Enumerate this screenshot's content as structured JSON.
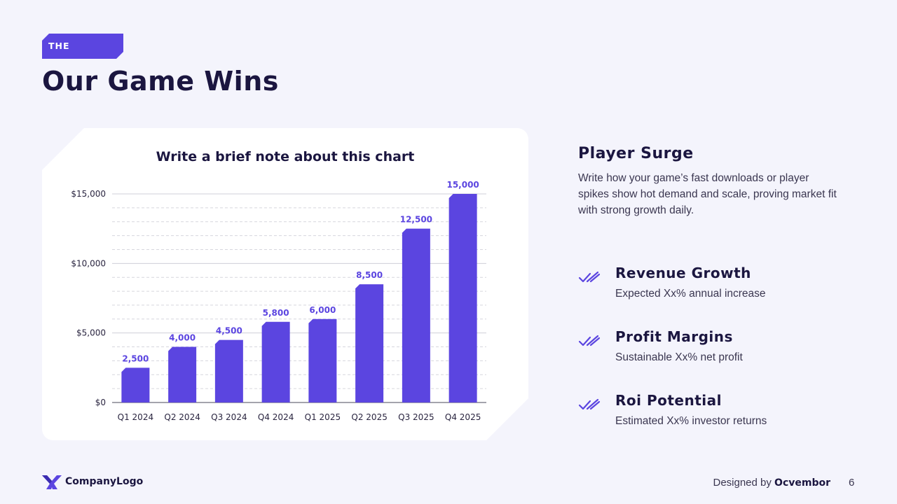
{
  "header": {
    "badge": "THE TRACTION",
    "title": "Our Game Wins"
  },
  "chart_data": {
    "type": "bar",
    "title": "Write a brief note about this chart",
    "categories": [
      "Q1 2024",
      "Q2 2024",
      "Q3 2024",
      "Q4 2024",
      "Q1 2025",
      "Q2 2025",
      "Q3 2025",
      "Q4 2025"
    ],
    "values": [
      2500,
      4000,
      4500,
      5800,
      6000,
      8500,
      12500,
      15000
    ],
    "data_labels": [
      "2,500",
      "4,000",
      "4,500",
      "5,800",
      "6,000",
      "8,500",
      "12,500",
      "15,000"
    ],
    "yticks": [
      0,
      5000,
      10000,
      15000
    ],
    "ytick_labels": [
      "$0",
      "$5,000",
      "$10,000",
      "$15,000"
    ],
    "ylim": [
      0,
      15000
    ],
    "xlabel": "",
    "ylabel": "",
    "grid": true,
    "bar_color": "#5b45e0"
  },
  "surge": {
    "title": "Player Surge",
    "text": "Write how your game’s fast downloads or player spikes show hot demand and scale, proving market fit with strong growth daily."
  },
  "features": [
    {
      "title": "Revenue Growth",
      "desc": "Expected Xx% annual increase",
      "icon": "double-check-icon"
    },
    {
      "title": "Profit Margins",
      "desc": "Sustainable Xx% net profit",
      "icon": "double-check-icon"
    },
    {
      "title": "Roi Potential",
      "desc": "Estimated Xx% investor returns",
      "icon": "double-check-icon"
    }
  ],
  "footer": {
    "logo_text": "CompanyLogo",
    "designed_prefix": "Designed by",
    "designed_brand": "Ocvembor",
    "page_number": "6"
  },
  "colors": {
    "accent": "#5b45e0",
    "navy": "#1b1640",
    "background": "#f4f4fc"
  }
}
